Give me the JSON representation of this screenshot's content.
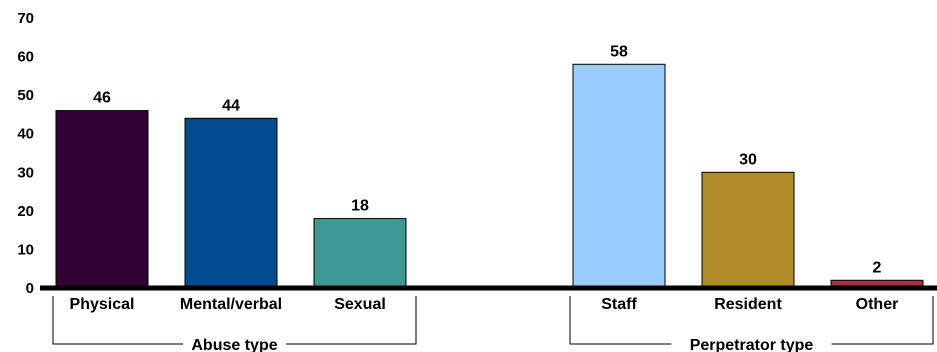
{
  "chart_data": {
    "type": "bar",
    "title": "",
    "xlabel": "",
    "ylabel": "",
    "ylim": [
      0,
      70
    ],
    "y_ticks": [
      0,
      10,
      20,
      30,
      40,
      50,
      60,
      70
    ],
    "grid": false,
    "legend": "none",
    "groups": [
      {
        "label": "Abuse type",
        "bars": [
          {
            "category": "Physical",
            "value": 46,
            "color": "#330033"
          },
          {
            "category": "Mental/verbal",
            "value": 44,
            "color": "#004c8f"
          },
          {
            "category": "Sexual",
            "value": 18,
            "color": "#3e9893"
          }
        ]
      },
      {
        "label": "Perpetrator type",
        "bars": [
          {
            "category": "Staff",
            "value": 58,
            "color": "#99ccff"
          },
          {
            "category": "Resident",
            "value": 30,
            "color": "#b18b27"
          },
          {
            "category": "Other",
            "value": 2,
            "color": "#a3333d"
          }
        ]
      }
    ]
  }
}
